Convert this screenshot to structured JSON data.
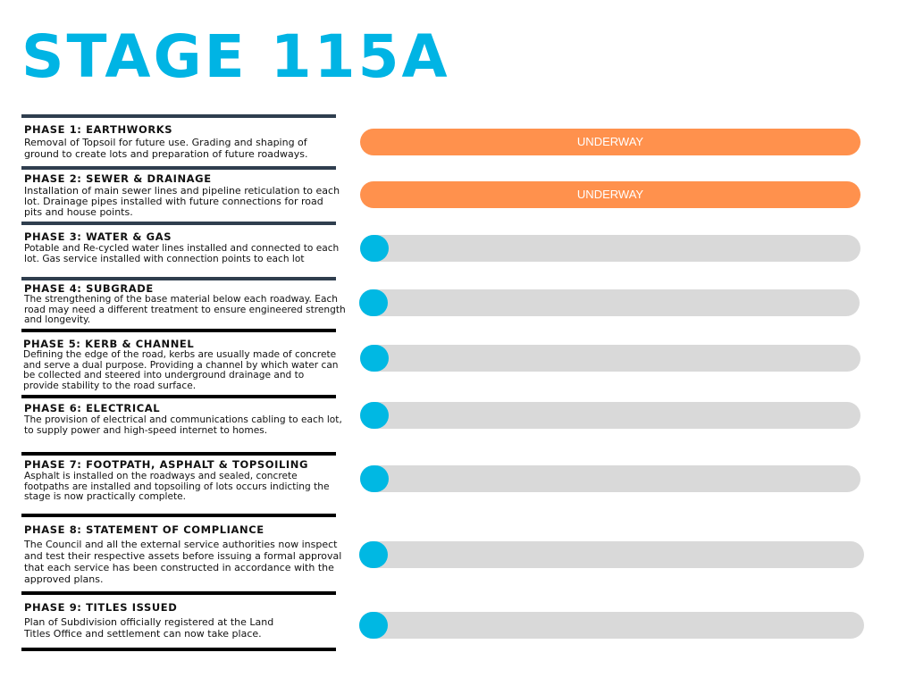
{
  "title": "STAGE 115A",
  "colors": {
    "accent": "#00b4e4",
    "underway": "#ff914d",
    "track": "#d9d9d9"
  },
  "phases": [
    {
      "heading": "PHASE 1: EARTHWORKS",
      "text": "Removal of Topsoil for future use. Grading and shaping of ground to create lots and preparation of future roadways.",
      "status": "UNDERWAY"
    },
    {
      "heading": "PHASE 2: SEWER & DRAINAGE",
      "text": "Installation of main sewer lines and pipeline reticulation to each lot. Drainage pipes installed with future connections for road pits and house points.",
      "status": "UNDERWAY"
    },
    {
      "heading": "PHASE 3: WATER & GAS",
      "text": "Potable and Re-cycled water lines installed and connected to each lot. Gas service installed with connection points to each lot"
    },
    {
      "heading": "PHASE 4: SUBGRADE",
      "text": "The strengthening of the base material below each roadway. Each road may need a different treatment to ensure engineered strength and longevity."
    },
    {
      "heading": "PHASE 5: KERB & CHANNEL",
      "text": "Defining the edge of the road, kerbs are usually made of concrete and serve a dual purpose. Providing a channel by which water can be collected and steered into underground drainage and to provide stability to the road surface."
    },
    {
      "heading": "PHASE 6: ELECTRICAL",
      "text": "The provision of electrical and communications cabling to each lot, to supply power and high-speed internet to homes."
    },
    {
      "heading": "PHASE 7: FOOTPATH, ASPHALT & TOPSOILING",
      "text": "Asphalt is installed on the roadways and sealed, concrete footpaths are installed and topsoiling of lots occurs indicting the stage is now practically complete."
    },
    {
      "heading": "PHASE 8: STATEMENT OF COMPLIANCE",
      "text": "The Council and all the external service authorities now inspect and test their respective assets before issuing a formal approval that each service has been constructed in accordance with the approved plans."
    },
    {
      "heading": "PHASE 9: TITLES ISSUED",
      "text": "Plan of Subdivision officially registered at the Land Titles Office and settlement can now take place."
    }
  ]
}
